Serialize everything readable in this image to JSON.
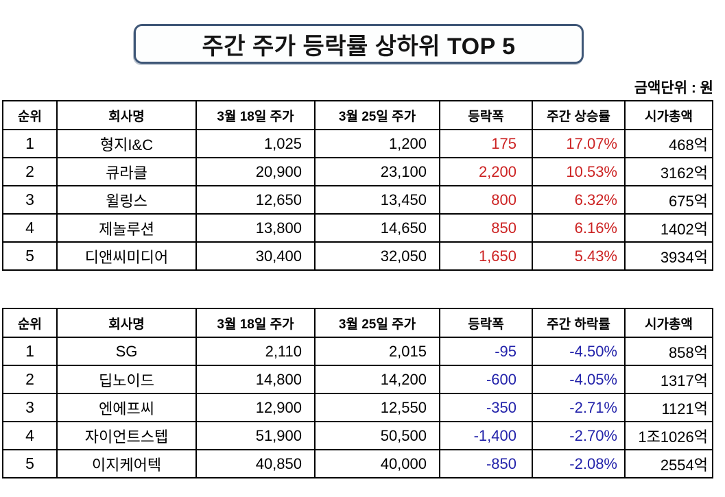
{
  "header": {
    "title_main": "주간 주가 등락률 상하위 ",
    "title_bold": "TOP 5",
    "unit_label": "금액단위 : 원"
  },
  "colors": {
    "gain": "#cc2222",
    "loss": "#2222aa",
    "title_border": "#3f5777"
  },
  "chart_data": [
    {
      "type": "table",
      "title": "주간 주가 등락률 상위 TOP 5",
      "unit": "금액단위 : 원",
      "columns": [
        "순위",
        "회사명",
        "3월 18일 주가",
        "3월 25일 주가",
        "등락폭",
        "주간 상승률",
        "시가총액"
      ],
      "rows": [
        [
          "1",
          "형지I&C",
          "1,025",
          "1,200",
          "175",
          "17.07%",
          "468억"
        ],
        [
          "2",
          "큐라클",
          "20,900",
          "23,100",
          "2,200",
          "10.53%",
          "3162억"
        ],
        [
          "3",
          "윌링스",
          "12,650",
          "13,450",
          "800",
          "6.32%",
          "675억"
        ],
        [
          "4",
          "제놀루션",
          "13,800",
          "14,650",
          "850",
          "6.16%",
          "1402억"
        ],
        [
          "5",
          "디앤씨미디어",
          "30,400",
          "32,050",
          "1,650",
          "5.43%",
          "3934억"
        ]
      ],
      "value_color": "red"
    },
    {
      "type": "table",
      "title": "주간 주가 등락률 하위 TOP 5",
      "unit": "금액단위 : 원",
      "columns": [
        "순위",
        "회사명",
        "3월 18일 주가",
        "3월 25일 주가",
        "등락폭",
        "주간 하락률",
        "시가총액"
      ],
      "rows": [
        [
          "1",
          "SG",
          "2,110",
          "2,015",
          "-95",
          "-4.50%",
          "858억"
        ],
        [
          "2",
          "딥노이드",
          "14,800",
          "14,200",
          "-600",
          "-4.05%",
          "1317억"
        ],
        [
          "3",
          "엔에프씨",
          "12,900",
          "12,550",
          "-350",
          "-2.71%",
          "1121억"
        ],
        [
          "4",
          "자이언트스텝",
          "51,900",
          "50,500",
          "-1,400",
          "-2.70%",
          "1조1026억"
        ],
        [
          "5",
          "이지케어텍",
          "40,850",
          "40,000",
          "-850",
          "-2.08%",
          "2554억"
        ]
      ],
      "value_color": "blue"
    }
  ]
}
